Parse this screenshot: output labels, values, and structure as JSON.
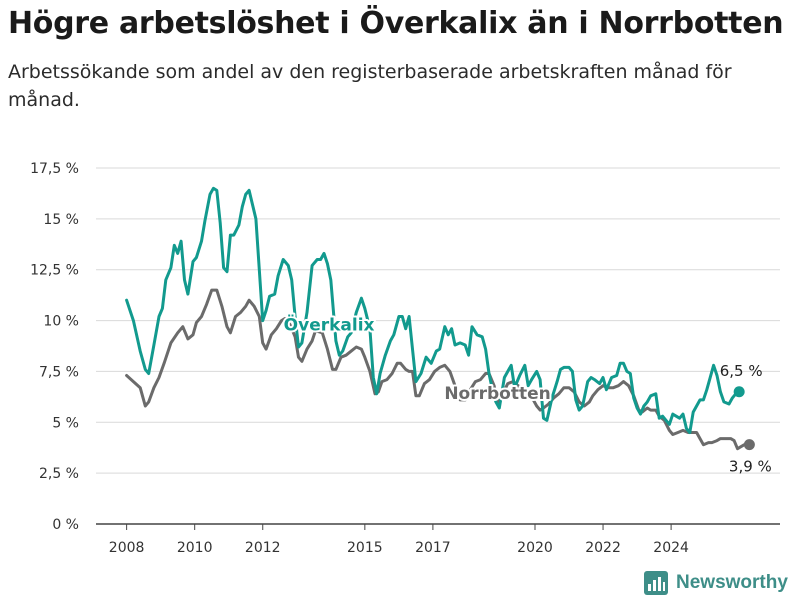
{
  "chart_data": {
    "type": "line",
    "title": "Högre arbetslöshet i Överkalix än i Norrbotten",
    "subtitle": "Arbetssökande som andel av den registerbaserade arbetskraften månad för månad.",
    "ylim": [
      0,
      17.5
    ],
    "yticks": [
      0,
      2.5,
      5,
      7.5,
      10,
      12.5,
      15,
      17.5
    ],
    "ytick_labels": [
      "0 %",
      "2,5 %",
      "5 %",
      "7,5 %",
      "10 %",
      "12,5 %",
      "15 %",
      "17,5 %"
    ],
    "xticks": [
      2008,
      2010,
      2012,
      2015,
      2017,
      2020,
      2022,
      2024
    ],
    "xtick_labels": [
      "2008",
      "2010",
      "2012",
      "2015",
      "2017",
      "2020",
      "2022",
      "2024"
    ],
    "grid": "horizontal",
    "series": [
      {
        "name": "Överkalix",
        "color": "#129a8e",
        "end_label": "6,5 %",
        "points": [
          [
            2008.0,
            11.0
          ],
          [
            2008.2,
            10.0
          ],
          [
            2008.4,
            8.5
          ],
          [
            2008.55,
            7.6
          ],
          [
            2008.65,
            7.4
          ],
          [
            2008.8,
            8.8
          ],
          [
            2008.95,
            10.2
          ],
          [
            2009.05,
            10.6
          ],
          [
            2009.15,
            12.0
          ],
          [
            2009.3,
            12.6
          ],
          [
            2009.4,
            13.7
          ],
          [
            2009.5,
            13.3
          ],
          [
            2009.6,
            13.9
          ],
          [
            2009.7,
            12.0
          ],
          [
            2009.8,
            11.3
          ],
          [
            2009.95,
            12.9
          ],
          [
            2010.05,
            13.1
          ],
          [
            2010.2,
            13.9
          ],
          [
            2010.3,
            14.9
          ],
          [
            2010.45,
            16.2
          ],
          [
            2010.55,
            16.5
          ],
          [
            2010.65,
            16.4
          ],
          [
            2010.75,
            14.8
          ],
          [
            2010.85,
            12.6
          ],
          [
            2010.95,
            12.4
          ],
          [
            2011.05,
            14.2
          ],
          [
            2011.15,
            14.2
          ],
          [
            2011.3,
            14.7
          ],
          [
            2011.4,
            15.6
          ],
          [
            2011.5,
            16.2
          ],
          [
            2011.6,
            16.4
          ],
          [
            2011.7,
            15.7
          ],
          [
            2011.8,
            15.0
          ],
          [
            2011.9,
            12.5
          ],
          [
            2012.0,
            10.0
          ],
          [
            2012.1,
            10.5
          ],
          [
            2012.2,
            11.2
          ],
          [
            2012.35,
            11.3
          ],
          [
            2012.45,
            12.2
          ],
          [
            2012.6,
            13.0
          ],
          [
            2012.75,
            12.7
          ],
          [
            2012.85,
            12.0
          ],
          [
            2012.95,
            10.2
          ],
          [
            2013.05,
            8.7
          ],
          [
            2013.15,
            8.9
          ],
          [
            2013.3,
            10.4
          ],
          [
            2013.45,
            12.7
          ],
          [
            2013.6,
            13.0
          ],
          [
            2013.7,
            13.0
          ],
          [
            2013.8,
            13.3
          ],
          [
            2013.9,
            12.8
          ],
          [
            2014.0,
            12.0
          ],
          [
            2014.15,
            9.0
          ],
          [
            2014.25,
            8.3
          ],
          [
            2014.35,
            8.5
          ],
          [
            2014.5,
            9.2
          ],
          [
            2014.6,
            9.4
          ],
          [
            2014.75,
            10.4
          ],
          [
            2014.9,
            11.1
          ],
          [
            2015.0,
            10.6
          ],
          [
            2015.15,
            9.6
          ],
          [
            2015.25,
            7.2
          ],
          [
            2015.35,
            6.4
          ],
          [
            2015.45,
            7.4
          ],
          [
            2015.6,
            8.3
          ],
          [
            2015.75,
            9.0
          ],
          [
            2015.85,
            9.3
          ],
          [
            2016.0,
            10.2
          ],
          [
            2016.1,
            10.2
          ],
          [
            2016.2,
            9.6
          ],
          [
            2016.3,
            10.2
          ],
          [
            2016.4,
            8.6
          ],
          [
            2016.5,
            7.0
          ],
          [
            2016.65,
            7.4
          ],
          [
            2016.8,
            8.2
          ],
          [
            2016.95,
            7.9
          ],
          [
            2017.1,
            8.5
          ],
          [
            2017.2,
            8.6
          ],
          [
            2017.35,
            9.7
          ],
          [
            2017.45,
            9.3
          ],
          [
            2017.55,
            9.6
          ],
          [
            2017.65,
            8.8
          ],
          [
            2017.8,
            8.9
          ],
          [
            2017.95,
            8.8
          ],
          [
            2018.05,
            8.3
          ],
          [
            2018.15,
            9.7
          ],
          [
            2018.3,
            9.3
          ],
          [
            2018.45,
            9.2
          ],
          [
            2018.55,
            8.6
          ],
          [
            2018.65,
            7.4
          ],
          [
            2018.75,
            6.6
          ],
          [
            2018.85,
            6.0
          ],
          [
            2018.95,
            5.7
          ],
          [
            2019.1,
            7.2
          ],
          [
            2019.2,
            7.5
          ],
          [
            2019.3,
            7.8
          ],
          [
            2019.4,
            6.7
          ],
          [
            2019.55,
            7.3
          ],
          [
            2019.7,
            7.8
          ],
          [
            2019.8,
            6.8
          ],
          [
            2019.9,
            7.1
          ],
          [
            2020.05,
            7.5
          ],
          [
            2020.15,
            7.1
          ],
          [
            2020.25,
            5.2
          ],
          [
            2020.35,
            5.1
          ],
          [
            2020.5,
            6.2
          ],
          [
            2020.65,
            7.0
          ],
          [
            2020.75,
            7.6
          ],
          [
            2020.85,
            7.7
          ],
          [
            2021.0,
            7.7
          ],
          [
            2021.1,
            7.5
          ],
          [
            2021.2,
            6.1
          ],
          [
            2021.3,
            5.6
          ],
          [
            2021.4,
            5.8
          ],
          [
            2021.55,
            7.0
          ],
          [
            2021.65,
            7.2
          ],
          [
            2021.75,
            7.1
          ],
          [
            2021.9,
            6.9
          ],
          [
            2022.0,
            7.2
          ],
          [
            2022.1,
            6.6
          ],
          [
            2022.25,
            7.2
          ],
          [
            2022.4,
            7.3
          ],
          [
            2022.5,
            7.9
          ],
          [
            2022.6,
            7.9
          ],
          [
            2022.7,
            7.5
          ],
          [
            2022.8,
            7.4
          ],
          [
            2022.9,
            6.2
          ],
          [
            2023.0,
            5.7
          ],
          [
            2023.1,
            5.4
          ],
          [
            2023.2,
            5.8
          ],
          [
            2023.3,
            6.0
          ],
          [
            2023.4,
            6.3
          ],
          [
            2023.55,
            6.4
          ],
          [
            2023.65,
            5.2
          ],
          [
            2023.75,
            5.3
          ],
          [
            2023.85,
            5.1
          ],
          [
            2023.95,
            4.9
          ],
          [
            2024.05,
            5.4
          ],
          [
            2024.15,
            5.3
          ],
          [
            2024.25,
            5.2
          ],
          [
            2024.35,
            5.4
          ],
          [
            2024.45,
            4.7
          ],
          [
            2024.55,
            4.5
          ],
          [
            2024.65,
            5.5
          ],
          [
            2024.75,
            5.8
          ],
          [
            2024.85,
            6.1
          ],
          [
            2024.95,
            6.1
          ],
          [
            2025.05,
            6.6
          ],
          [
            2025.15,
            7.2
          ],
          [
            2025.25,
            7.8
          ],
          [
            2025.35,
            7.3
          ],
          [
            2025.45,
            6.5
          ],
          [
            2025.55,
            6.0
          ],
          [
            2025.7,
            5.9
          ],
          [
            2025.8,
            6.2
          ],
          [
            2025.9,
            6.4
          ],
          [
            2026.0,
            6.5
          ]
        ]
      },
      {
        "name": "Norrbotten",
        "color": "#6b6b6b",
        "end_label": "3,9 %",
        "points": [
          [
            2008.0,
            7.3
          ],
          [
            2008.2,
            7.0
          ],
          [
            2008.4,
            6.7
          ],
          [
            2008.55,
            5.8
          ],
          [
            2008.65,
            6.0
          ],
          [
            2008.8,
            6.7
          ],
          [
            2008.95,
            7.2
          ],
          [
            2009.1,
            7.9
          ],
          [
            2009.3,
            8.9
          ],
          [
            2009.5,
            9.4
          ],
          [
            2009.65,
            9.7
          ],
          [
            2009.8,
            9.1
          ],
          [
            2009.95,
            9.3
          ],
          [
            2010.05,
            9.9
          ],
          [
            2010.2,
            10.2
          ],
          [
            2010.35,
            10.8
          ],
          [
            2010.5,
            11.5
          ],
          [
            2010.65,
            11.5
          ],
          [
            2010.8,
            10.7
          ],
          [
            2010.95,
            9.7
          ],
          [
            2011.05,
            9.4
          ],
          [
            2011.2,
            10.2
          ],
          [
            2011.35,
            10.4
          ],
          [
            2011.5,
            10.7
          ],
          [
            2011.6,
            11.0
          ],
          [
            2011.75,
            10.7
          ],
          [
            2011.9,
            10.2
          ],
          [
            2012.0,
            8.9
          ],
          [
            2012.1,
            8.6
          ],
          [
            2012.25,
            9.3
          ],
          [
            2012.4,
            9.6
          ],
          [
            2012.55,
            10.0
          ],
          [
            2012.65,
            10.1
          ],
          [
            2012.8,
            9.8
          ],
          [
            2012.95,
            9.2
          ],
          [
            2013.05,
            8.2
          ],
          [
            2013.15,
            8.0
          ],
          [
            2013.3,
            8.6
          ],
          [
            2013.45,
            9.0
          ],
          [
            2013.55,
            9.5
          ],
          [
            2013.75,
            9.4
          ],
          [
            2013.9,
            8.6
          ],
          [
            2014.05,
            7.6
          ],
          [
            2014.15,
            7.6
          ],
          [
            2014.3,
            8.2
          ],
          [
            2014.45,
            8.3
          ],
          [
            2014.6,
            8.5
          ],
          [
            2014.75,
            8.7
          ],
          [
            2014.9,
            8.6
          ],
          [
            2015.0,
            8.2
          ],
          [
            2015.15,
            7.5
          ],
          [
            2015.3,
            6.4
          ],
          [
            2015.4,
            6.5
          ],
          [
            2015.5,
            7.0
          ],
          [
            2015.65,
            7.1
          ],
          [
            2015.8,
            7.4
          ],
          [
            2015.95,
            7.9
          ],
          [
            2016.05,
            7.9
          ],
          [
            2016.2,
            7.6
          ],
          [
            2016.3,
            7.5
          ],
          [
            2016.4,
            7.5
          ],
          [
            2016.5,
            6.3
          ],
          [
            2016.6,
            6.3
          ],
          [
            2016.75,
            6.9
          ],
          [
            2016.9,
            7.1
          ],
          [
            2017.05,
            7.5
          ],
          [
            2017.2,
            7.7
          ],
          [
            2017.35,
            7.8
          ],
          [
            2017.5,
            7.5
          ],
          [
            2017.65,
            6.8
          ],
          [
            2017.8,
            6.1
          ],
          [
            2017.95,
            6.1
          ],
          [
            2018.1,
            6.6
          ],
          [
            2018.25,
            7.0
          ],
          [
            2018.4,
            7.1
          ],
          [
            2018.55,
            7.4
          ],
          [
            2018.65,
            7.4
          ],
          [
            2018.8,
            6.8
          ],
          [
            2018.9,
            5.9
          ],
          [
            2019.05,
            6.4
          ],
          [
            2019.2,
            6.9
          ],
          [
            2019.35,
            7.0
          ],
          [
            2019.5,
            6.8
          ],
          [
            2019.6,
            6.7
          ],
          [
            2019.75,
            6.6
          ],
          [
            2019.85,
            6.4
          ],
          [
            2020.05,
            5.8
          ],
          [
            2020.15,
            5.6
          ],
          [
            2020.25,
            5.7
          ],
          [
            2020.4,
            5.9
          ],
          [
            2020.55,
            6.2
          ],
          [
            2020.7,
            6.4
          ],
          [
            2020.85,
            6.7
          ],
          [
            2021.0,
            6.7
          ],
          [
            2021.15,
            6.5
          ],
          [
            2021.3,
            6.0
          ],
          [
            2021.45,
            5.8
          ],
          [
            2021.6,
            6.0
          ],
          [
            2021.7,
            6.3
          ],
          [
            2021.85,
            6.6
          ],
          [
            2022.0,
            6.8
          ],
          [
            2022.15,
            6.7
          ],
          [
            2022.3,
            6.7
          ],
          [
            2022.45,
            6.8
          ],
          [
            2022.6,
            7.0
          ],
          [
            2022.75,
            6.8
          ],
          [
            2022.9,
            6.3
          ],
          [
            2023.05,
            5.6
          ],
          [
            2023.15,
            5.5
          ],
          [
            2023.3,
            5.7
          ],
          [
            2023.4,
            5.6
          ],
          [
            2023.55,
            5.6
          ],
          [
            2023.65,
            5.3
          ],
          [
            2023.8,
            5.1
          ],
          [
            2023.95,
            4.6
          ],
          [
            2024.05,
            4.4
          ],
          [
            2024.2,
            4.5
          ],
          [
            2024.35,
            4.6
          ],
          [
            2024.5,
            4.5
          ],
          [
            2024.65,
            4.5
          ],
          [
            2024.75,
            4.5
          ],
          [
            2024.85,
            4.2
          ],
          [
            2024.95,
            3.9
          ],
          [
            2025.1,
            4.0
          ],
          [
            2025.2,
            4.0
          ],
          [
            2025.35,
            4.1
          ],
          [
            2025.45,
            4.2
          ],
          [
            2025.6,
            4.2
          ],
          [
            2025.75,
            4.2
          ],
          [
            2025.85,
            4.1
          ],
          [
            2025.95,
            3.7
          ],
          [
            2026.05,
            3.8
          ],
          [
            2026.15,
            3.9
          ],
          [
            2026.3,
            3.9
          ]
        ]
      }
    ]
  },
  "brand": {
    "name": "Newsworthy"
  }
}
